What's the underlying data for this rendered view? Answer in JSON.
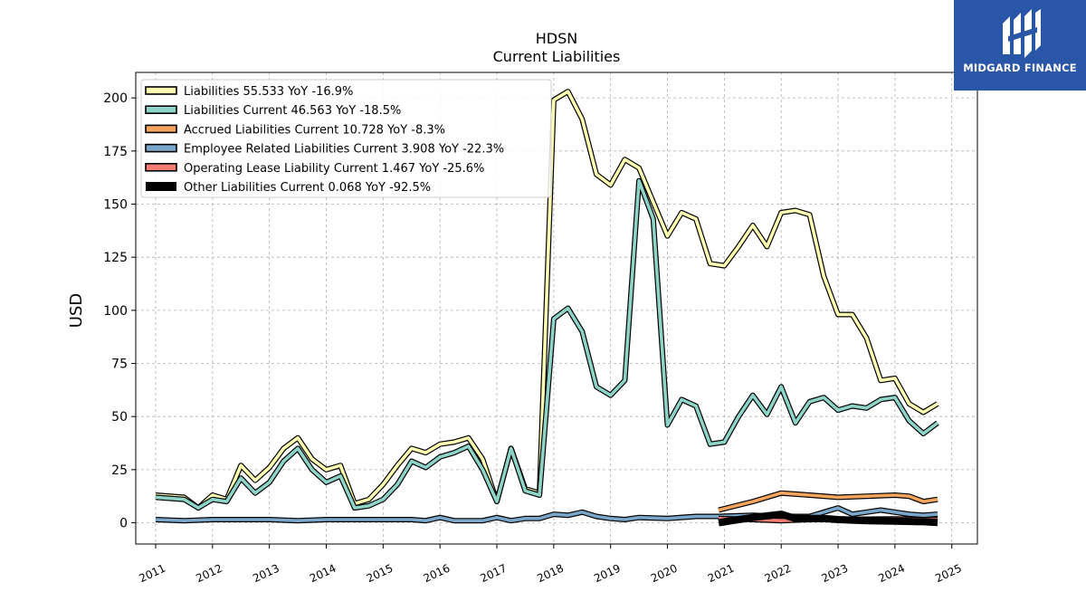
{
  "chart_data": {
    "type": "line",
    "title": "HDSN",
    "subtitle": "Current  Liabilities",
    "ylabel": "USD",
    "xlabel": "",
    "ylim": [
      -10,
      212
    ],
    "xlim": [
      2010.65,
      2025.45
    ],
    "y_ticks": [
      0,
      25,
      50,
      75,
      100,
      125,
      150,
      175,
      200
    ],
    "x_ticks": [
      "2011",
      "2012",
      "2013",
      "2014",
      "2015",
      "2016",
      "2017",
      "2018",
      "2019",
      "2020",
      "2021",
      "2022",
      "2023",
      "2024",
      "2025"
    ],
    "grid": true,
    "legend_position": "top-left",
    "series": [
      {
        "name": "Liabilities",
        "legend": "Liabilities  55.533 YoY -16.9%",
        "color": "#ffffb3",
        "x": [
          2011.0,
          2011.5,
          2011.75,
          2012.0,
          2012.25,
          2012.5,
          2012.75,
          2013.0,
          2013.25,
          2013.5,
          2013.75,
          2014.0,
          2014.25,
          2014.5,
          2014.75,
          2015.0,
          2015.25,
          2015.5,
          2015.75,
          2016.0,
          2016.25,
          2016.5,
          2016.75,
          2017.0,
          2017.25,
          2017.5,
          2017.75,
          2018.0,
          2018.25,
          2018.5,
          2018.75,
          2019.0,
          2019.25,
          2019.5,
          2019.75,
          2020.0,
          2020.25,
          2020.5,
          2020.75,
          2021.0,
          2021.25,
          2021.5,
          2021.75,
          2022.0,
          2022.25,
          2022.5,
          2022.75,
          2023.0,
          2023.25,
          2023.5,
          2023.75,
          2024.0,
          2024.25,
          2024.5,
          2024.75
        ],
        "y": [
          13,
          12,
          7,
          13,
          11,
          27,
          20,
          26,
          35,
          40,
          30,
          25,
          27,
          9,
          11,
          18,
          27,
          35,
          33,
          37,
          38,
          40,
          30,
          10,
          35,
          16,
          14,
          199,
          203,
          190,
          164,
          159,
          171,
          167,
          151,
          135,
          146,
          143,
          122,
          121,
          130,
          140,
          130,
          146,
          147,
          145,
          116,
          98,
          98,
          87,
          67,
          68,
          56,
          52,
          56
        ]
      },
      {
        "name": "Liabilities Current",
        "legend": "Liabilities Current  46.563 YoY -18.5%",
        "color": "#8dd3c7",
        "x": [
          2011.0,
          2011.5,
          2011.75,
          2012.0,
          2012.25,
          2012.5,
          2012.75,
          2013.0,
          2013.25,
          2013.5,
          2013.75,
          2014.0,
          2014.25,
          2014.5,
          2014.75,
          2015.0,
          2015.25,
          2015.5,
          2015.75,
          2016.0,
          2016.25,
          2016.5,
          2016.75,
          2017.0,
          2017.25,
          2017.5,
          2017.75,
          2018.0,
          2018.25,
          2018.5,
          2018.75,
          2019.0,
          2019.25,
          2019.5,
          2019.75,
          2020.0,
          2020.25,
          2020.5,
          2020.75,
          2021.0,
          2021.25,
          2021.5,
          2021.75,
          2022.0,
          2022.25,
          2022.5,
          2022.75,
          2023.0,
          2023.25,
          2023.5,
          2023.75,
          2024.0,
          2024.25,
          2024.5,
          2024.75
        ],
        "y": [
          12,
          11,
          7,
          11,
          10,
          21,
          14,
          19,
          29,
          35,
          25,
          19,
          22,
          7,
          8,
          11,
          18,
          29,
          26,
          31,
          33,
          36,
          25,
          10,
          35,
          15,
          13,
          96,
          101,
          90,
          64,
          60,
          67,
          161,
          143,
          46,
          58,
          55,
          37,
          38,
          50,
          60,
          51,
          64,
          47,
          57,
          59,
          53,
          55,
          54,
          58,
          59,
          48,
          42,
          47
        ]
      },
      {
        "name": "Accrued Liabilities Current",
        "legend": "Accrued Liabilities Current  10.728 YoY -8.3%",
        "color": "#f4a45c",
        "x": [
          2020.9,
          2021.5,
          2022.0,
          2022.5,
          2023.0,
          2023.5,
          2024.0,
          2024.25,
          2024.5,
          2024.75
        ],
        "y": [
          6,
          10,
          14,
          13,
          12,
          12.5,
          13,
          12.5,
          10,
          11
        ]
      },
      {
        "name": "Employee Related Liabilities Current",
        "legend": "Employee Related Liabilities Current  3.908 YoY -22.3%",
        "color": "#7aa6c9",
        "x": [
          2011.0,
          2011.5,
          2012.0,
          2012.5,
          2013.0,
          2013.5,
          2014.0,
          2014.5,
          2015.0,
          2015.5,
          2015.75,
          2016.0,
          2016.25,
          2016.75,
          2017.0,
          2017.25,
          2017.5,
          2017.75,
          2018.0,
          2018.25,
          2018.5,
          2018.75,
          2019.0,
          2019.25,
          2019.5,
          2020.0,
          2020.5,
          2020.9,
          2021.5,
          2022.0,
          2022.5,
          2022.75,
          2023.0,
          2023.25,
          2023.5,
          2023.75,
          2024.0,
          2024.25,
          2024.5,
          2024.75
        ],
        "y": [
          1.5,
          1,
          1.5,
          1.5,
          1.5,
          1,
          1.5,
          1.5,
          1.5,
          1.5,
          1,
          2.5,
          1,
          1,
          2.5,
          1,
          2,
          2,
          4,
          3.5,
          5,
          3,
          2,
          1.5,
          2.5,
          2,
          3,
          3,
          3.5,
          3,
          3,
          5,
          7,
          4,
          5,
          6,
          5,
          4,
          3.5,
          4
        ]
      },
      {
        "name": "Operating Lease Liability Current",
        "legend": "Operating Lease Liability Current  1.467 YoY -25.6%",
        "color": "#f47c72",
        "x": [
          2020.9,
          2021.5,
          2022.0,
          2022.5,
          2023.0,
          2023.5,
          2024.0,
          2024.5,
          2024.75
        ],
        "y": [
          2,
          1.5,
          1,
          1.5,
          1.5,
          1.7,
          1.8,
          1.5,
          1.5
        ]
      },
      {
        "name": "Other Liabilities Current",
        "legend": "Other Liabilities Current  0.068 YoY -92.5%",
        "color": "#000000",
        "x": [
          2020.9,
          2021.25,
          2021.5,
          2022.0,
          2022.25,
          2022.5,
          2022.75,
          2023.0,
          2023.5,
          2024.0,
          2024.5,
          2024.75
        ],
        "y": [
          0,
          1.5,
          2.5,
          4,
          2,
          2,
          2,
          1.5,
          1,
          0.8,
          0.5,
          0.1
        ]
      }
    ]
  },
  "logo": {
    "text": "MIDGARD FINANCE",
    "color": "#2a56a8"
  }
}
